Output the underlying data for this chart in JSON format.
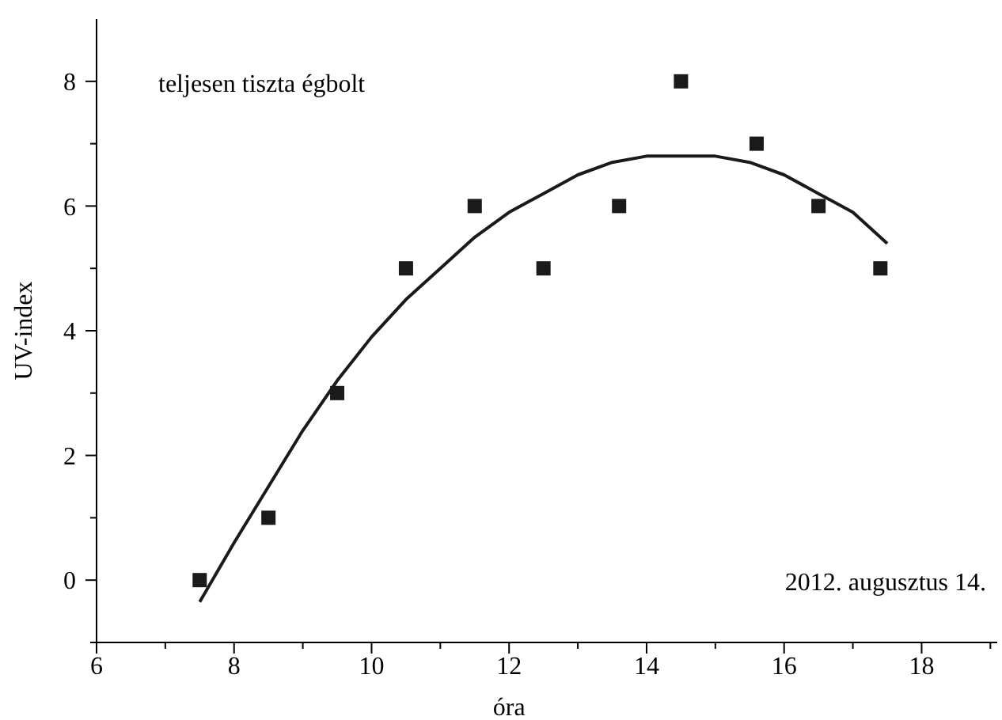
{
  "chart_data": {
    "type": "scatter",
    "xlabel": "óra",
    "ylabel": "UV-index",
    "xlim": [
      6,
      19.1
    ],
    "ylim": [
      -1,
      9
    ],
    "xticks": [
      6,
      {
        "value": 7,
        "label": null
      },
      8,
      {
        "value": 9,
        "label": null
      },
      10,
      {
        "value": 11,
        "label": null
      },
      12,
      {
        "value": 13,
        "label": null
      },
      14,
      {
        "value": 15,
        "label": null
      },
      16,
      {
        "value": 17,
        "label": null
      },
      18,
      {
        "value": 19,
        "label": null
      }
    ],
    "yticks": [
      {
        "value": -1,
        "label": null
      },
      0,
      {
        "value": 1,
        "label": null
      },
      2,
      {
        "value": 3,
        "label": null
      },
      4,
      {
        "value": 5,
        "label": null
      },
      6,
      {
        "value": 7,
        "label": null
      },
      8
    ],
    "grid": false,
    "annotations": [
      "teljesen tiszta égbolt",
      "2012. augusztus 14."
    ],
    "series": [
      {
        "marker": "square",
        "color": "#1a1a1a",
        "x": [
          7.5,
          8.5,
          9.5,
          10.5,
          11.5,
          12.5,
          13.6,
          14.5,
          15.6,
          16.5,
          17.4
        ],
        "values": [
          0,
          1,
          3,
          5,
          6,
          5,
          6,
          8,
          7,
          6,
          5
        ]
      },
      {
        "type": "line",
        "marker": "none",
        "line_style": "solid",
        "color": "#1a1a1a",
        "x": [
          7.5,
          8,
          8.5,
          9,
          9.5,
          10,
          10.5,
          11,
          11.5,
          12,
          12.5,
          13,
          13.5,
          14,
          14.5,
          15,
          15.5,
          16,
          16.5,
          17,
          17.5
        ],
        "values": [
          -0.35,
          0.6,
          1.5,
          2.4,
          3.2,
          3.9,
          4.5,
          5.0,
          5.5,
          5.9,
          6.2,
          6.5,
          6.7,
          6.8,
          6.8,
          6.8,
          6.7,
          6.5,
          6.2,
          5.9,
          5.4
        ]
      }
    ]
  }
}
